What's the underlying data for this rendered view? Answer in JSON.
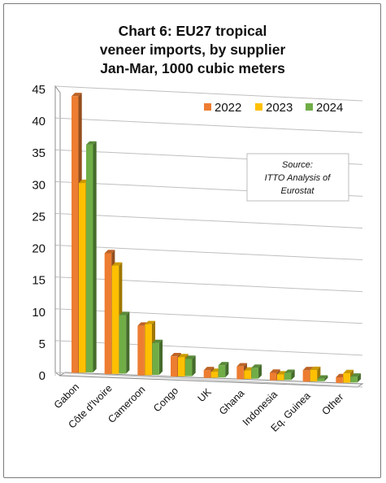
{
  "chart_data": {
    "type": "bar",
    "title_lines": [
      "Chart 6: EU27 tropical",
      "veneer imports, by supplier",
      "Jan-Mar, 1000 cubic meters"
    ],
    "categories": [
      "Gabon",
      "Côte d'Ivoire",
      "Cameroon",
      "Congo",
      "UK",
      "Ghana",
      "Indonesia",
      "Eq. Guinea",
      "Other"
    ],
    "series": [
      {
        "name": "2022",
        "color": "#ED7D31",
        "values": [
          43.5,
          19.0,
          7.8,
          3.2,
          1.2,
          2.0,
          1.2,
          1.8,
          0.9
        ]
      },
      {
        "name": "2023",
        "color": "#FFC000",
        "values": [
          29.8,
          17.0,
          8.0,
          3.0,
          0.9,
          1.3,
          0.9,
          1.8,
          1.5
        ]
      },
      {
        "name": "2024",
        "color": "#70AD47",
        "values": [
          35.8,
          9.2,
          5.0,
          2.7,
          1.9,
          1.7,
          1.1,
          0.4,
          0.9
        ]
      }
    ],
    "ylim": [
      0,
      45
    ],
    "yticks": [
      0,
      5,
      10,
      15,
      20,
      25,
      30,
      35,
      40,
      45
    ],
    "grid": true,
    "legend_position": "top-right",
    "annotation_lines": [
      "Source:",
      "ITTO Analysis of",
      "Eurostat"
    ]
  }
}
